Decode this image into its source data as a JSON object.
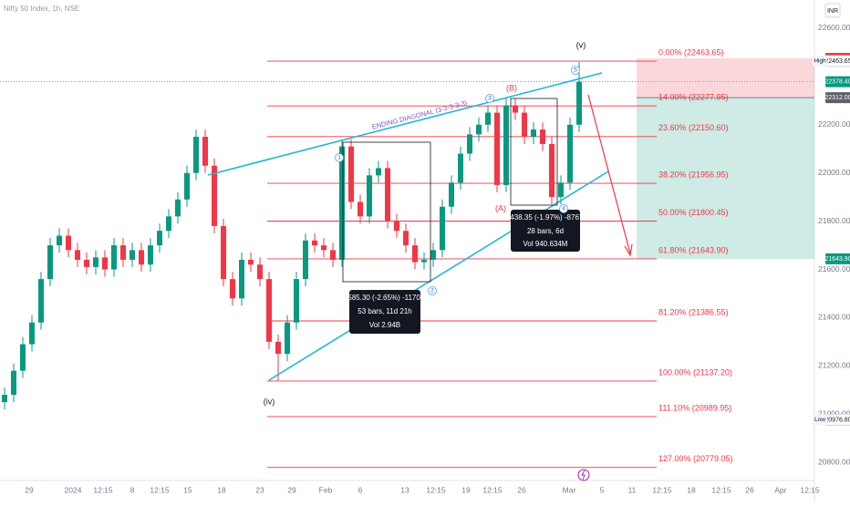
{
  "chart_data": {
    "type": "candlestick",
    "title": "Nifty 50 Index, 1h, NSE",
    "currency": "INR",
    "ylim": [
      20676,
      22717
    ],
    "xlim": [
      -0.5,
      88.8
    ],
    "yticks": [
      {
        "value": 22600,
        "label": "22600.00"
      },
      {
        "value": 22200,
        "label": "22200.00"
      },
      {
        "value": 22000,
        "label": "22000.00"
      },
      {
        "value": 21800,
        "label": "21800.00"
      },
      {
        "value": 21600,
        "label": "21600.00"
      },
      {
        "value": 21400,
        "label": "21400.00"
      },
      {
        "value": 21200,
        "label": "21200.00"
      },
      {
        "value": 21000,
        "label": "21000.00"
      },
      {
        "value": 20800,
        "label": "20800.00"
      }
    ],
    "xticks": [
      {
        "value": 2.7,
        "label": "29"
      },
      {
        "value": 7.5,
        "label": "2024"
      },
      {
        "value": 10.8,
        "label": "12:15"
      },
      {
        "value": 14,
        "label": "8"
      },
      {
        "value": 17,
        "label": "12:15"
      },
      {
        "value": 20.1,
        "label": "15"
      },
      {
        "value": 23.8,
        "label": "18"
      },
      {
        "value": 28,
        "label": "23"
      },
      {
        "value": 31.5,
        "label": "29"
      },
      {
        "value": 35.2,
        "label": "Feb"
      },
      {
        "value": 39,
        "label": "6"
      },
      {
        "value": 43.9,
        "label": "13"
      },
      {
        "value": 47.3,
        "label": "12:15"
      },
      {
        "value": 50.6,
        "label": "19"
      },
      {
        "value": 53.5,
        "label": "12:15"
      },
      {
        "value": 56.7,
        "label": "26"
      },
      {
        "value": 61.9,
        "label": "Mar"
      },
      {
        "value": 65.5,
        "label": "5"
      },
      {
        "value": 68.8,
        "label": "11"
      },
      {
        "value": 72.1,
        "label": "12:15"
      },
      {
        "value": 75.3,
        "label": "18"
      },
      {
        "value": 78.6,
        "label": "12:15"
      },
      {
        "value": 81.7,
        "label": "26"
      },
      {
        "value": 85.1,
        "label": "Apr"
      },
      {
        "value": 88.3,
        "label": "12:15"
      }
    ],
    "up_color": "#089981",
    "down_color": "#f23645",
    "open": [
      21050,
      21080,
      21180,
      21290,
      21380,
      21560,
      21700,
      21740,
      21680,
      21640,
      21610,
      21650,
      21600,
      21700,
      21640,
      21680,
      21620,
      21700,
      21760,
      21820,
      21890,
      22000,
      22150,
      22030,
      21780,
      21560,
      21480,
      21640,
      21620,
      21560,
      21300,
      21250,
      21380,
      21560,
      21720,
      21700,
      21680,
      21640,
      22110,
      21880,
      21820,
      21990,
      22020,
      21800,
      21760,
      21700,
      21630,
      21640,
      21680,
      21860,
      21960,
      22080,
      22160,
      22200,
      22250,
      21950,
      22280,
      22250,
      22150,
      22180,
      22120,
      21900,
      21960,
      22200
    ],
    "high": [
      21110,
      21210,
      21320,
      21410,
      21590,
      21730,
      21770,
      21770,
      21710,
      21670,
      21680,
      21680,
      21730,
      21730,
      21710,
      21710,
      21730,
      21790,
      21850,
      21920,
      22030,
      22180,
      22180,
      22060,
      21810,
      21590,
      21670,
      21670,
      21650,
      21590,
      21330,
      21410,
      21590,
      21750,
      21750,
      21730,
      21710,
      22140,
      22140,
      21910,
      22020,
      22050,
      22050,
      21830,
      21790,
      21730,
      21670,
      21710,
      21890,
      21990,
      22110,
      22190,
      22230,
      22280,
      22280,
      22310,
      22310,
      22280,
      22210,
      22210,
      22150,
      21990,
      22230,
      22460
    ],
    "low": [
      21020,
      21050,
      21150,
      21260,
      21350,
      21530,
      21670,
      21650,
      21610,
      21580,
      21580,
      21570,
      21570,
      21610,
      21610,
      21590,
      21590,
      21670,
      21730,
      21790,
      21860,
      21970,
      22000,
      21750,
      21530,
      21450,
      21450,
      21590,
      21530,
      21270,
      21140,
      21220,
      21350,
      21530,
      21670,
      21650,
      21610,
      21610,
      21850,
      21790,
      21790,
      21960,
      21770,
      21730,
      21670,
      21600,
      21600,
      21610,
      21650,
      21830,
      21930,
      22050,
      22130,
      22170,
      21920,
      21920,
      22220,
      22120,
      22120,
      22090,
      21870,
      21870,
      21930,
      22170
    ],
    "close": [
      21080,
      21180,
      21290,
      21380,
      21560,
      21700,
      21740,
      21680,
      21640,
      21610,
      21650,
      21600,
      21700,
      21640,
      21680,
      21620,
      21700,
      21760,
      21820,
      21890,
      22000,
      22150,
      22030,
      21780,
      21560,
      21480,
      21640,
      21620,
      21560,
      21300,
      21250,
      21380,
      21560,
      21720,
      21700,
      21680,
      21640,
      22110,
      21880,
      21820,
      21990,
      22020,
      21800,
      21760,
      21700,
      21630,
      21640,
      21680,
      21860,
      21960,
      22080,
      22160,
      22200,
      22250,
      21950,
      22280,
      22250,
      22150,
      22180,
      22120,
      21900,
      21960,
      22200,
      22378
    ],
    "fib_color": "#f23645",
    "fib_levels": [
      {
        "label": "0.00% (22463.65)",
        "value": 22463.65
      },
      {
        "label": "14.00% (22277.95)",
        "value": 22277.95
      },
      {
        "label": "23.60% (22150.60)",
        "value": 22150.6
      },
      {
        "label": "38.20% (21956.95)",
        "value": 21956.95
      },
      {
        "label": "50.00% (21800.45)",
        "value": 21800.45
      },
      {
        "label": "61.80% (21643.90)",
        "value": 21643.9
      },
      {
        "label": "81.20% (21386.55)",
        "value": 21386.55
      },
      {
        "label": "100.00% (21137.20)",
        "value": 21137.2
      },
      {
        "label": "111.10% (20989.95)",
        "value": 20989.95
      },
      {
        "label": "127.00% (20779.05)",
        "value": 20779.05
      }
    ],
    "price_tags": [
      {
        "value": 22475,
        "label": "22475.00",
        "color": "#f23645"
      },
      {
        "value": 22463.65,
        "label": "22463.65",
        "tag": "High",
        "color": "#ffffff"
      },
      {
        "value": 22378.4,
        "label": "22378.40",
        "color": "#089981"
      },
      {
        "value": 22312,
        "label": "22312.00",
        "color": "#5d606b"
      },
      {
        "value": 21643.9,
        "label": "21643.90",
        "color": "#089981"
      },
      {
        "value": 20976.8,
        "label": "20976.80",
        "tag": "Low",
        "color": "#ffffff"
      }
    ],
    "annotations": [
      "ENDING DIAGONAL (3-3-3-3-3)",
      "(v)",
      "(iv)",
      "(B)",
      "(A)",
      "1",
      "2",
      "3",
      "4",
      "5"
    ],
    "measurements": [
      {
        "change": "-585.30 (-2.65%) -11706",
        "bars": "53 bars, 11d 21h",
        "volume": "Vol 2.94B"
      },
      {
        "change": "-438.35 (-1.97%) -8767",
        "bars": "28 bars, 6d",
        "volume": "Vol 940.634M"
      }
    ]
  }
}
